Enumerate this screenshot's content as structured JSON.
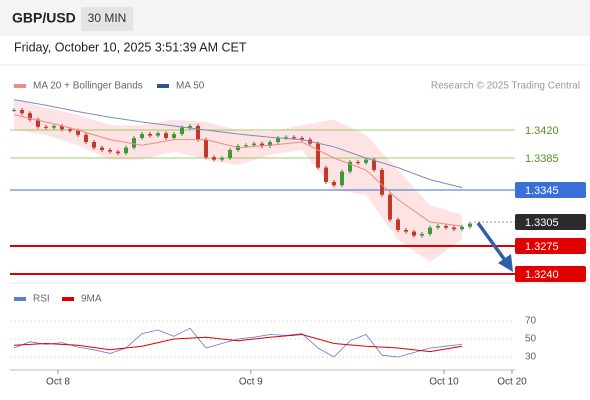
{
  "header": {
    "symbol": "GBP/USD",
    "interval": "30 MIN",
    "timestamp": "Friday, October 10, 2025 3:51:39 AM CET"
  },
  "chart_data": [
    {
      "type": "candlestick",
      "source": "Research © 2025 Trading Central",
      "xlim": [
        -0.5,
        62.5
      ],
      "ylim": [
        1.323,
        1.346
      ],
      "close": [
        1.3445,
        1.3441,
        1.3433,
        1.3424,
        1.3423,
        1.3425,
        1.3421,
        1.3419,
        1.3414,
        1.3405,
        1.3398,
        1.3395,
        1.3393,
        1.3391,
        1.3398,
        1.341,
        1.3415,
        1.3413,
        1.3416,
        1.341,
        1.3415,
        1.3423,
        1.3425,
        1.3408,
        1.3386,
        1.3383,
        1.3385,
        1.3395,
        1.34,
        1.3401,
        1.3403,
        1.34,
        1.3405,
        1.341,
        1.3411,
        1.341,
        1.3408,
        1.3403,
        1.3373,
        1.3355,
        1.3351,
        1.3368,
        1.338,
        1.3379,
        1.3383,
        1.337,
        1.3339,
        1.3308,
        1.3295,
        1.3293,
        1.3288,
        1.329,
        1.3298,
        1.33,
        1.3298,
        1.3296,
        1.3299,
        1.3303
      ],
      "up_color": "#3a9a3a",
      "down_color": "#c0392b",
      "ma_x": [
        0,
        4,
        8,
        12,
        16,
        20,
        24,
        28,
        32,
        36,
        40,
        44,
        48,
        52,
        56
      ],
      "series": [
        {
          "name": "MA 20 + Bollinger Bands",
          "color": "#f28b82",
          "band_color": "#fde3e3",
          "values": [
            1.3439,
            1.343,
            1.342,
            1.3408,
            1.3401,
            1.3408,
            1.3408,
            1.3398,
            1.3401,
            1.3405,
            1.3385,
            1.337,
            1.3333,
            1.3305,
            1.33
          ],
          "upper": [
            1.3458,
            1.3448,
            1.3439,
            1.3426,
            1.3426,
            1.3433,
            1.343,
            1.342,
            1.3418,
            1.3426,
            1.3433,
            1.3414,
            1.337,
            1.3326,
            1.3314
          ],
          "lower": [
            1.342,
            1.3414,
            1.3401,
            1.3383,
            1.3383,
            1.3393,
            1.3383,
            1.3376,
            1.3389,
            1.3395,
            1.3345,
            1.3339,
            1.3283,
            1.3255,
            1.3283
          ]
        },
        {
          "name": "MA 50",
          "color": "#2f5597",
          "line_color": "#7f8bbd",
          "values": [
            1.3458,
            1.3451,
            1.3443,
            1.3436,
            1.343,
            1.3425,
            1.342,
            1.3415,
            1.3411,
            1.3408,
            1.3399,
            1.3385,
            1.3373,
            1.3358,
            1.3348
          ]
        }
      ],
      "levels": [
        {
          "value": 1.342,
          "label": "1.3420",
          "color": "#8bc34a",
          "text_color": "#5a8f1e",
          "line": "solid",
          "box": false
        },
        {
          "value": 1.3385,
          "label": "1.3385",
          "color": "#8bc34a",
          "text_color": "#5a8f1e",
          "line": "solid",
          "box": false
        },
        {
          "value": 1.3345,
          "label": "1.3345",
          "color": "#3b6fd8",
          "text_color": "#ffffff",
          "line": "solid",
          "box": true
        },
        {
          "value": 1.3305,
          "label": "1.3305",
          "color": "#2b2b2b",
          "text_color": "#ffffff",
          "line": "dotted",
          "box": true
        },
        {
          "value": 1.3275,
          "label": "1.3275",
          "color": "#e00000",
          "text_color": "#ffffff",
          "line": "thick",
          "box": true
        },
        {
          "value": 1.324,
          "label": "1.3240",
          "color": "#e00000",
          "text_color": "#ffffff",
          "line": "thick",
          "box": true
        }
      ]
    },
    {
      "type": "line",
      "xlim": [
        -0.5,
        62.5
      ],
      "ylim": [
        20,
        80
      ],
      "yticks": [
        30,
        50,
        70
      ],
      "xticks": [
        {
          "value": 5.5,
          "label": "Oct 8"
        },
        {
          "value": 29.6,
          "label": "Oct 9"
        },
        {
          "value": 53.75,
          "label": "Oct 10"
        },
        {
          "value": 62.25,
          "label": "Oct 20"
        }
      ],
      "series": [
        {
          "name": "RSI",
          "color": "#5b7fd6",
          "x": [
            0,
            2,
            4,
            6,
            8,
            10,
            12,
            14,
            16,
            18,
            20,
            22,
            24,
            26,
            28,
            30,
            32,
            34,
            36,
            38,
            40,
            42,
            44,
            46,
            48,
            50,
            52,
            54,
            56
          ],
          "values": [
            40,
            47,
            44,
            46,
            41,
            38,
            34,
            40,
            56,
            60,
            53,
            62,
            40,
            45,
            50,
            52,
            55,
            54,
            56,
            40,
            30,
            48,
            55,
            32,
            30,
            35,
            40,
            42,
            44
          ]
        },
        {
          "name": "9MA",
          "color": "#e00000",
          "x": [
            0,
            4,
            8,
            12,
            16,
            20,
            24,
            28,
            32,
            36,
            40,
            44,
            48,
            52,
            56
          ],
          "values": [
            43,
            45,
            43,
            38,
            42,
            50,
            52,
            48,
            52,
            55,
            45,
            42,
            40,
            36,
            42
          ]
        }
      ]
    }
  ]
}
